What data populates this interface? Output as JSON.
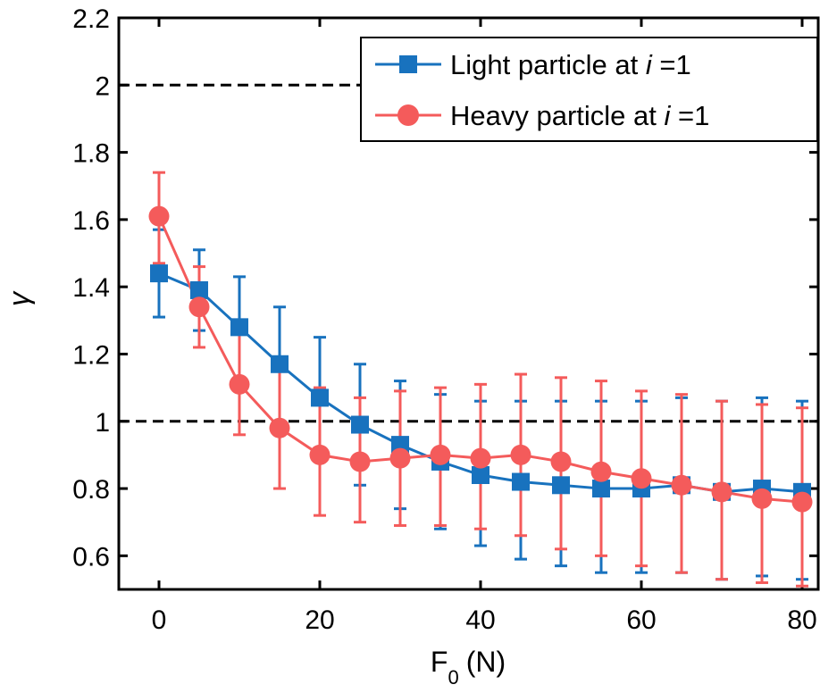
{
  "chart_data": {
    "type": "line",
    "xlabel": "F",
    "xlabel_sub": "0",
    "xlabel_unit": "(N)",
    "ylabel": "γ",
    "xlim": [
      -5,
      82
    ],
    "ylim": [
      0.5,
      2.2
    ],
    "xticks": [
      0,
      20,
      40,
      60,
      80
    ],
    "yticks": [
      0.6,
      0.8,
      1,
      1.2,
      1.4,
      1.6,
      1.8,
      2,
      2.2
    ],
    "xtick_labels": [
      "0",
      "20",
      "40",
      "60",
      "80"
    ],
    "ytick_labels": [
      "0.6",
      "0.8",
      "1",
      "1.2",
      "1.4",
      "1.6",
      "1.8",
      "2",
      "2.2"
    ],
    "reference_lines": [
      2,
      1
    ],
    "legend_position": "top-right",
    "x": [
      0,
      5,
      10,
      15,
      20,
      25,
      30,
      35,
      40,
      45,
      50,
      55,
      60,
      65,
      70,
      75,
      80
    ],
    "series": [
      {
        "name_prefix": "Light particle at ",
        "name_var": "i",
        "name_suffix": " =1",
        "color": "#1872BE",
        "marker": "square",
        "values": [
          1.44,
          1.39,
          1.28,
          1.17,
          1.07,
          0.99,
          0.93,
          0.88,
          0.84,
          0.82,
          0.81,
          0.8,
          0.8,
          0.81,
          0.79,
          0.8,
          0.79
        ],
        "err_low": [
          1.31,
          1.27,
          1.12,
          1.0,
          0.89,
          0.81,
          0.74,
          0.68,
          0.63,
          0.59,
          0.57,
          0.55,
          0.55,
          0.55,
          0.53,
          0.54,
          0.53
        ],
        "err_high": [
          1.57,
          1.51,
          1.43,
          1.34,
          1.25,
          1.17,
          1.12,
          1.08,
          1.06,
          1.06,
          1.06,
          1.06,
          1.06,
          1.07,
          1.06,
          1.07,
          1.06
        ]
      },
      {
        "name_prefix": "Heavy particle at ",
        "name_var": "i",
        "name_suffix": " =1",
        "color": "#F45B5B",
        "marker": "circle",
        "values": [
          1.61,
          1.34,
          1.11,
          0.98,
          0.9,
          0.88,
          0.89,
          0.9,
          0.89,
          0.9,
          0.88,
          0.85,
          0.83,
          0.81,
          0.79,
          0.77,
          0.76
        ],
        "err_low": [
          1.47,
          1.22,
          0.96,
          0.8,
          0.72,
          0.7,
          0.69,
          0.69,
          0.68,
          0.66,
          0.62,
          0.6,
          0.57,
          0.55,
          0.53,
          0.52,
          0.51
        ],
        "err_high": [
          1.74,
          1.46,
          1.26,
          1.16,
          1.1,
          1.07,
          1.09,
          1.1,
          1.11,
          1.14,
          1.13,
          1.12,
          1.09,
          1.08,
          1.06,
          1.05,
          1.04
        ]
      }
    ]
  }
}
